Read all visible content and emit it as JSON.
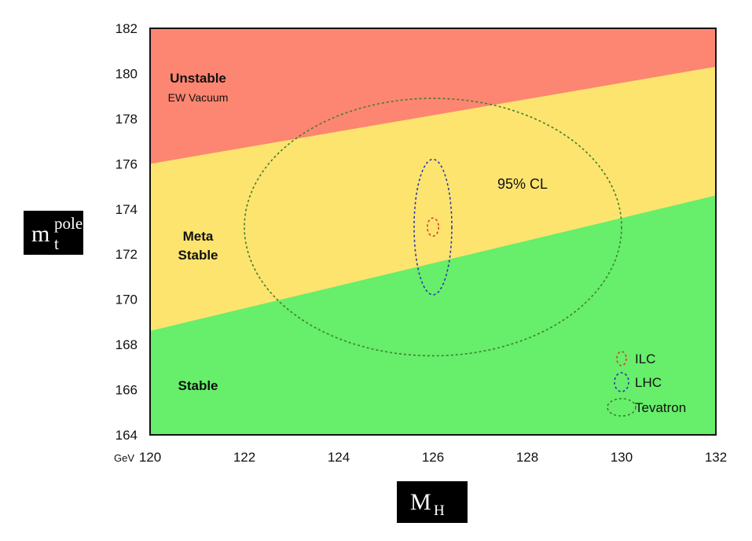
{
  "chart_data": {
    "type": "area",
    "x": {
      "label_main": "M",
      "label_sub": "H",
      "unit": "GeV",
      "range": [
        120,
        132
      ],
      "ticks": [
        120,
        122,
        124,
        126,
        128,
        130,
        132
      ]
    },
    "y": {
      "label_main": "m",
      "label_sup": "pole",
      "label_sub": "t",
      "range": [
        164,
        182
      ],
      "ticks": [
        164,
        166,
        168,
        170,
        172,
        174,
        176,
        178,
        180,
        182
      ]
    },
    "regions": [
      {
        "name": "Unstable",
        "sub": "EW Vacuum",
        "color": "#fc8672",
        "boundary_lower": [
          [
            120,
            176.0
          ],
          [
            132,
            180.3
          ]
        ]
      },
      {
        "name": "Meta Stable",
        "sub": "",
        "color": "#fde46f",
        "boundary_lower": [
          [
            120,
            168.6
          ],
          [
            132,
            174.6
          ]
        ]
      },
      {
        "name": "Stable",
        "sub": "",
        "color": "#67ee6b",
        "boundary_lower": null
      }
    ],
    "ellipses": [
      {
        "name": "ILC",
        "center": [
          126.0,
          173.2
        ],
        "half_width": [
          0.12,
          0.4
        ],
        "color": "#e03a2a"
      },
      {
        "name": "LHC",
        "center": [
          126.0,
          173.2
        ],
        "half_width": [
          0.4,
          3.0
        ],
        "color": "#2a3ab0"
      },
      {
        "name": "Tevatron",
        "center": [
          126.0,
          173.2
        ],
        "half_width": [
          4.0,
          5.7
        ],
        "color": "#3f7f2f"
      }
    ],
    "annotations": [
      {
        "text": "95% CL",
        "x": 127.9,
        "y": 174.9
      }
    ],
    "legend": {
      "position": "bottom-right",
      "entries": [
        "ILC",
        "LHC",
        "Tevatron"
      ]
    }
  }
}
